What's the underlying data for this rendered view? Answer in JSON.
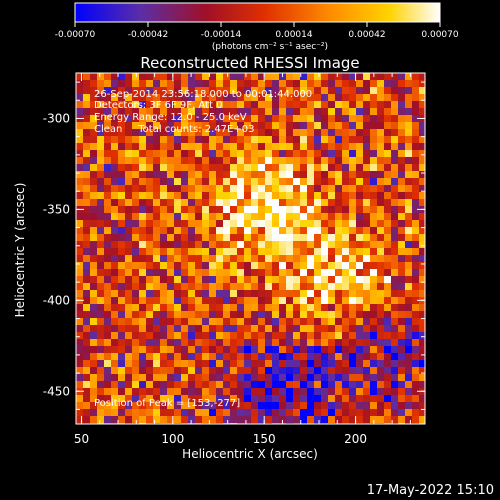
{
  "chart_data": {
    "type": "heatmap",
    "title": "Reconstructed RHESSI Image",
    "xlabel": "Heliocentric X (arcsec)",
    "ylabel": "Heliocentric Y (arcsec)",
    "xlim": [
      47,
      238
    ],
    "ylim": [
      -468,
      -275
    ],
    "x_ticks": [
      "50",
      "100",
      "150",
      "200"
    ],
    "x_tick_values": [
      50,
      100,
      150,
      200
    ],
    "y_ticks": [
      "-300",
      "-350",
      "-400",
      "-450"
    ],
    "y_tick_values": [
      -300,
      -350,
      -400,
      -450
    ],
    "colorbar": {
      "ticks": [
        "-0.00070",
        "-0.00042",
        "-0.00014",
        "0.00014",
        "0.00042",
        "0.00070"
      ],
      "tick_values": [
        -0.0007,
        -0.00042,
        -0.00014,
        0.00014,
        0.00042,
        0.0007
      ],
      "range": [
        -0.0007,
        0.0007
      ],
      "label": "(photons cm⁻² s⁻¹ asec⁻²)",
      "colormap": [
        "#0000ff",
        "#5b2ea6",
        "#a01028",
        "#e03000",
        "#ff8c00",
        "#ffd200",
        "#ffffff"
      ]
    },
    "annotations": [
      "26-Sep-2014 23:56:18.000 to 00:01:44.000",
      "Detectors: 3F 6F 9F, Att 0",
      "Energy Range: 12.0 - 25.0 keV",
      "Clean     Total counts: 2.47E+03"
    ],
    "peak_text": "Position of Peak = [153,-277]",
    "peak": [
      153,
      -277
    ],
    "bright_sources": [
      {
        "x": 150,
        "y": -348,
        "intensity": 0.0007
      },
      {
        "x": 192,
        "y": -393,
        "intensity": 0.0006
      }
    ]
  },
  "footer_timestamp": "17-May-2022 15:10"
}
